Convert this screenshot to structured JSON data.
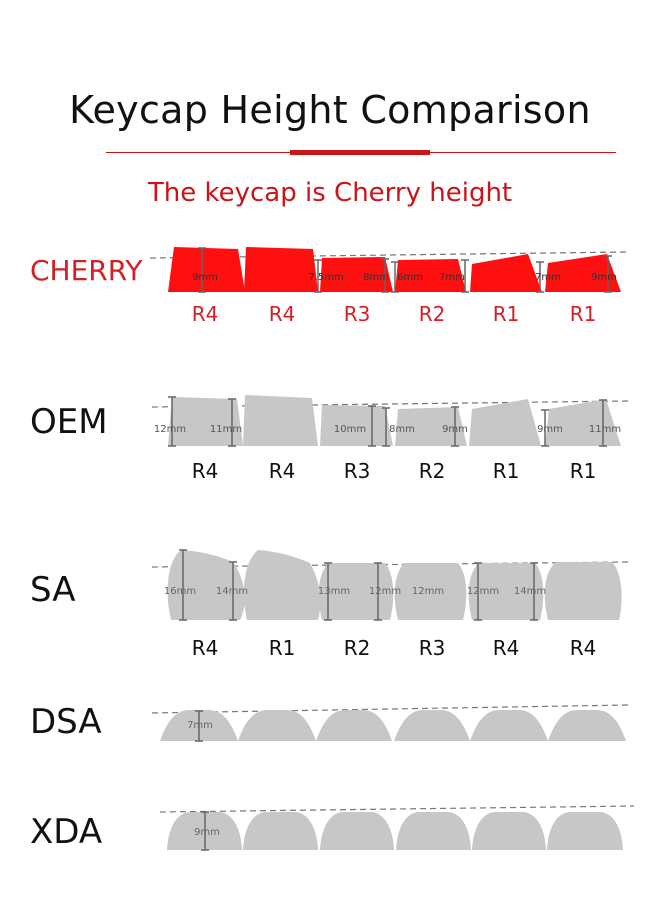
{
  "title": "Keycap Height Comparison",
  "subtitle": "The keycap is  Cherry  height",
  "colors": {
    "accent": "#d41f24",
    "cherry_fill": "#ff1010",
    "gray_fill": "#c7c7c7"
  },
  "profiles": [
    {
      "name": "CHERRY",
      "rows": [
        "R4",
        "R4",
        "R3",
        "R2",
        "R1",
        "R1"
      ],
      "height_labels": [
        "9mm",
        "7.5mm",
        "8mm",
        "6mm",
        "7mm",
        "7mm",
        "9mm"
      ]
    },
    {
      "name": "OEM",
      "rows": [
        "R4",
        "R4",
        "R3",
        "R2",
        "R1",
        "R1"
      ],
      "height_labels": [
        "12mm",
        "11mm",
        "10mm",
        "8mm",
        "9mm",
        "9mm",
        "11mm"
      ]
    },
    {
      "name": "SA",
      "rows": [
        "R4",
        "R1",
        "R2",
        "R3",
        "R4",
        "R4"
      ],
      "height_labels": [
        "16mm",
        "14mm",
        "13mm",
        "12mm",
        "12mm",
        "12mm",
        "14mm"
      ]
    },
    {
      "name": "DSA",
      "rows": [],
      "height_labels": [
        "7mm"
      ]
    },
    {
      "name": "XDA",
      "rows": [],
      "height_labels": [
        "9mm"
      ]
    }
  ]
}
